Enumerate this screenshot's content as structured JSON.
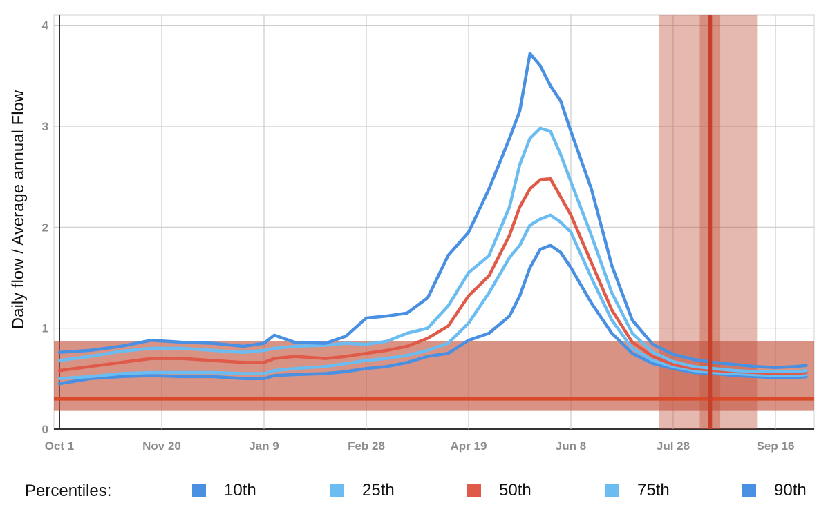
{
  "chart_data": {
    "type": "line",
    "title": "",
    "xlabel": "",
    "ylabel": "Daily flow / Average annual Flow",
    "x_tick_labels": [
      "Oct 1",
      "Nov 20",
      "Jan 9",
      "Feb 28",
      "Apr 19",
      "Jun 8",
      "Jul 28",
      "Sep 16"
    ],
    "x_tick_days": [
      0,
      50,
      100,
      150,
      200,
      250,
      300,
      350
    ],
    "y_tick_labels": [
      "0",
      "1",
      "2",
      "3",
      "4"
    ],
    "ylim": [
      0,
      4.1
    ],
    "xlim_days": [
      0,
      365
    ],
    "grid": true,
    "legend_position": "bottom",
    "legend_title": "Percentiles:",
    "x_sample_days": [
      0,
      15,
      30,
      45,
      60,
      75,
      90,
      100,
      105,
      115,
      130,
      140,
      150,
      160,
      170,
      180,
      190,
      200,
      210,
      220,
      225,
      230,
      235,
      240,
      245,
      250,
      260,
      270,
      280,
      290,
      300,
      310,
      320,
      330,
      340,
      350,
      360,
      365
    ],
    "series": [
      {
        "name": "10th",
        "color": "#4a90e2",
        "values": [
          0.45,
          0.5,
          0.52,
          0.53,
          0.52,
          0.52,
          0.5,
          0.5,
          0.53,
          0.54,
          0.55,
          0.57,
          0.6,
          0.62,
          0.66,
          0.72,
          0.75,
          0.88,
          0.95,
          1.12,
          1.32,
          1.6,
          1.78,
          1.82,
          1.75,
          1.6,
          1.25,
          0.95,
          0.75,
          0.65,
          0.6,
          0.56,
          0.55,
          0.53,
          0.52,
          0.51,
          0.51,
          0.52
        ]
      },
      {
        "name": "25th",
        "color": "#6bbcf0",
        "values": [
          0.5,
          0.52,
          0.55,
          0.56,
          0.56,
          0.56,
          0.55,
          0.55,
          0.58,
          0.6,
          0.62,
          0.65,
          0.68,
          0.7,
          0.73,
          0.78,
          0.85,
          1.05,
          1.35,
          1.7,
          1.82,
          2.02,
          2.08,
          2.12,
          2.05,
          1.95,
          1.5,
          1.08,
          0.8,
          0.68,
          0.62,
          0.58,
          0.56,
          0.55,
          0.54,
          0.53,
          0.53,
          0.54
        ]
      },
      {
        "name": "50th",
        "color": "#e05a4a",
        "values": [
          0.58,
          0.62,
          0.66,
          0.7,
          0.7,
          0.68,
          0.66,
          0.66,
          0.7,
          0.72,
          0.7,
          0.72,
          0.75,
          0.78,
          0.82,
          0.9,
          1.02,
          1.32,
          1.52,
          1.92,
          2.2,
          2.38,
          2.47,
          2.48,
          2.3,
          2.12,
          1.65,
          1.18,
          0.86,
          0.72,
          0.64,
          0.6,
          0.58,
          0.57,
          0.56,
          0.55,
          0.55,
          0.56
        ]
      },
      {
        "name": "75th",
        "color": "#6bbcf0",
        "values": [
          0.68,
          0.72,
          0.77,
          0.8,
          0.8,
          0.78,
          0.76,
          0.78,
          0.8,
          0.82,
          0.83,
          0.85,
          0.84,
          0.87,
          0.95,
          1.0,
          1.22,
          1.55,
          1.72,
          2.2,
          2.62,
          2.88,
          2.98,
          2.95,
          2.72,
          2.45,
          1.92,
          1.35,
          0.95,
          0.76,
          0.67,
          0.62,
          0.6,
          0.58,
          0.57,
          0.57,
          0.57,
          0.58
        ]
      },
      {
        "name": "90th",
        "color": "#4a90e2",
        "values": [
          0.76,
          0.78,
          0.82,
          0.88,
          0.86,
          0.85,
          0.82,
          0.85,
          0.93,
          0.86,
          0.85,
          0.92,
          1.1,
          1.12,
          1.15,
          1.3,
          1.72,
          1.95,
          2.38,
          2.88,
          3.15,
          3.72,
          3.6,
          3.4,
          3.25,
          2.95,
          2.38,
          1.62,
          1.08,
          0.84,
          0.74,
          0.69,
          0.66,
          0.64,
          0.62,
          0.61,
          0.62,
          0.63
        ]
      }
    ],
    "horizontal_band": {
      "center": 0.3,
      "low": 0.18,
      "high": 0.87,
      "color": "#c1503a"
    },
    "vertical_band": {
      "center_day": 318,
      "inner_low_day": 313,
      "inner_high_day": 323,
      "outer_low_day": 293,
      "outer_high_day": 341,
      "color": "#c1503a"
    }
  }
}
